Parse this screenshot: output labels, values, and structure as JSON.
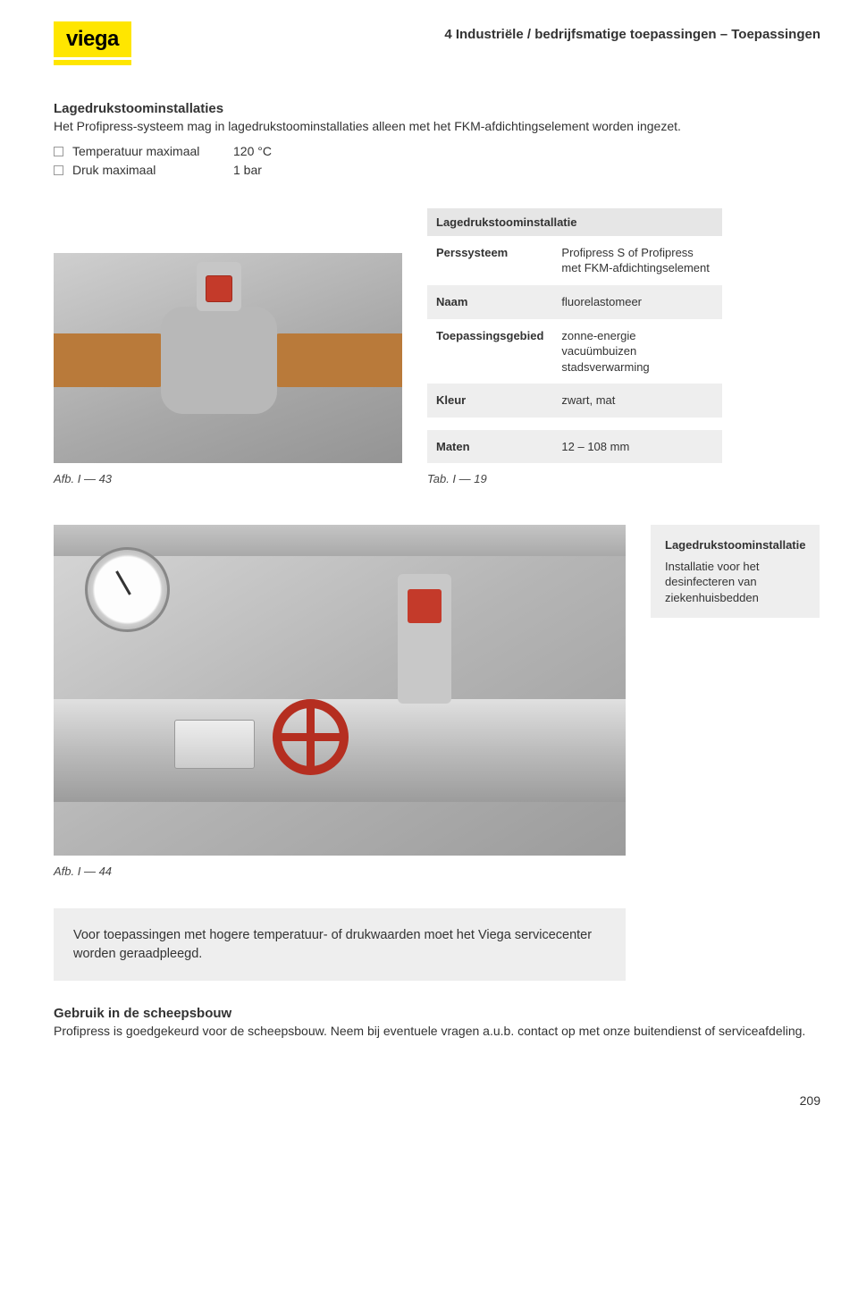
{
  "header": {
    "logo_text": "viega",
    "breadcrumb": "4 Industriële / bedrijfsmatige toepassingen – Toepassingen"
  },
  "intro": {
    "title": "Lagedrukstoominstallaties",
    "text": "Het Profipress-systeem mag in lagedrukstoominstallaties alleen met het FKM-afdichtingselement worden ingezet.",
    "bullets": [
      {
        "label": "Temperatuur maximaal",
        "value": "120 °C"
      },
      {
        "label": "Druk maximaal",
        "value": "1 bar"
      }
    ]
  },
  "fig1": {
    "caption": "Afb. I — 43"
  },
  "spec_table": {
    "header": "Lagedrukstoominstallatie",
    "rows": [
      {
        "label": "Perssysteem",
        "value": "Profipress S of Profipress met FKM-afdichtingselement",
        "alt": false
      },
      {
        "label": "Naam",
        "value": "fluorelastomeer",
        "alt": true
      },
      {
        "label": "Toepassingsgebied",
        "value": "zonne-energie\nvacuümbuizen\nstadsverwarming",
        "alt": false
      },
      {
        "label": "Kleur",
        "value": "zwart, mat",
        "alt": true
      }
    ],
    "footer_row": {
      "label": "Maten",
      "value": "12 – 108 mm"
    },
    "caption": "Tab. I — 19"
  },
  "fig2": {
    "caption": "Afb. I — 44",
    "side_title": "Lagedrukstoominstallatie",
    "side_text": "Installatie voor het desinfecteren van ziekenhuisbedden"
  },
  "notice": "Voor toepassingen met hogere temperatuur- of drukwaarden moet het Viega servicecenter worden geraadpleegd.",
  "section2": {
    "title": "Gebruik in de scheepsbouw",
    "text": "Profipress is goedgekeurd voor de scheepsbouw. Neem bij eventuele vragen a.u.b. contact op met onze buitendienst of serviceafdeling."
  },
  "page_number": "209",
  "colors": {
    "logo_bg": "#ffe600",
    "gray_panel": "#eeeeee",
    "table_header_bg": "#e6e6e6",
    "red": "#c43a2a",
    "copper": "#b97a3a"
  }
}
